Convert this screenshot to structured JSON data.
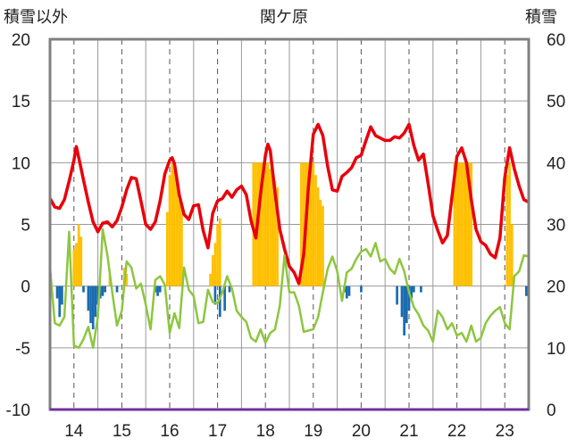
{
  "chart_data": {
    "type": "bar",
    "title": "関ケ原",
    "ylabel_left": "積雪以外",
    "ylabel_right": "積雪",
    "left_axis": {
      "min": -10,
      "max": 20,
      "ticks": [
        "20",
        "15",
        "10",
        "5",
        "0",
        "-5",
        "-10"
      ],
      "tick_values": [
        20,
        15,
        10,
        5,
        0,
        -5,
        -10
      ]
    },
    "right_axis": {
      "min": 0,
      "max": 60,
      "ticks": [
        "60",
        "50",
        "40",
        "30",
        "20",
        "10",
        "0"
      ],
      "tick_values": [
        60,
        50,
        40,
        30,
        20,
        10,
        0
      ]
    },
    "x_axis": {
      "min": 13.5,
      "max": 23.5,
      "categories": [
        "14",
        "15",
        "16",
        "17",
        "18",
        "19",
        "20",
        "21",
        "22",
        "23"
      ],
      "category_values": [
        14,
        15,
        16,
        17,
        18,
        19,
        20,
        21,
        22,
        23
      ]
    },
    "grid": true,
    "series": [
      {
        "type": "line",
        "color": "#e8000b",
        "axis": "left",
        "x": [
          13.5,
          13.6,
          13.7,
          13.8,
          13.9,
          14.0,
          14.05,
          14.1,
          14.2,
          14.3,
          14.4,
          14.5,
          14.6,
          14.7,
          14.8,
          14.9,
          15.0,
          15.1,
          15.2,
          15.3,
          15.4,
          15.5,
          15.6,
          15.7,
          15.8,
          15.9,
          16.0,
          16.05,
          16.1,
          16.2,
          16.3,
          16.4,
          16.5,
          16.6,
          16.7,
          16.8,
          16.9,
          17.0,
          17.1,
          17.2,
          17.3,
          17.4,
          17.5,
          17.6,
          17.7,
          17.8,
          17.9,
          18.0,
          18.05,
          18.1,
          18.2,
          18.3,
          18.4,
          18.5,
          18.6,
          18.7,
          18.8,
          18.9,
          19.0,
          19.1,
          19.2,
          19.3,
          19.4,
          19.5,
          19.6,
          19.7,
          19.8,
          19.9,
          20.0,
          20.1,
          20.2,
          20.3,
          20.4,
          20.5,
          20.6,
          20.7,
          20.8,
          20.9,
          21.0,
          21.1,
          21.2,
          21.3,
          21.4,
          21.5,
          21.6,
          21.7,
          21.8,
          21.9,
          22.0,
          22.1,
          22.2,
          22.3,
          22.4,
          22.5,
          22.6,
          22.7,
          22.8,
          22.9,
          23.0,
          23.1,
          23.2,
          23.3,
          23.4,
          23.5
        ],
        "values": [
          7.1,
          6.4,
          6.3,
          7.0,
          8.5,
          10.2,
          11.3,
          10.4,
          8.6,
          6.8,
          5.2,
          4.4,
          5.1,
          5.2,
          4.8,
          5.3,
          6.4,
          7.8,
          8.8,
          8.7,
          6.9,
          5.0,
          4.6,
          5.2,
          6.9,
          9.1,
          10.2,
          10.4,
          9.9,
          7.4,
          5.8,
          5.4,
          6.5,
          6.6,
          4.5,
          3.1,
          5.9,
          6.9,
          7.1,
          7.7,
          7.2,
          7.8,
          8.1,
          7.4,
          5.3,
          3.9,
          7.5,
          10.6,
          11.5,
          11.0,
          7.6,
          4.6,
          3.0,
          1.6,
          1.1,
          0.2,
          2.6,
          8.1,
          12.3,
          13.1,
          12.2,
          9.7,
          7.8,
          7.7,
          8.9,
          9.2,
          9.6,
          10.4,
          10.6,
          11.8,
          12.9,
          12.2,
          12.0,
          11.8,
          11.8,
          12.1,
          12.0,
          12.4,
          13.1,
          11.4,
          10.2,
          10.7,
          8.3,
          5.7,
          4.5,
          3.5,
          4.1,
          7.3,
          10.5,
          11.2,
          10.0,
          7.0,
          4.6,
          3.6,
          3.3,
          2.6,
          2.3,
          3.9,
          8.8,
          11.2,
          9.5,
          8.1,
          7.0,
          6.8
        ]
      },
      {
        "type": "line",
        "color": "#8dc63f",
        "axis": "left",
        "x": [
          13.5,
          13.6,
          13.7,
          13.8,
          13.9,
          14.0,
          14.1,
          14.2,
          14.3,
          14.4,
          14.5,
          14.6,
          14.7,
          14.8,
          14.9,
          15.0,
          15.1,
          15.2,
          15.3,
          15.4,
          15.5,
          15.6,
          15.7,
          15.8,
          15.9,
          16.0,
          16.1,
          16.2,
          16.3,
          16.4,
          16.5,
          16.6,
          16.7,
          16.8,
          16.9,
          17.0,
          17.1,
          17.2,
          17.3,
          17.4,
          17.5,
          17.6,
          17.7,
          17.8,
          17.9,
          18.0,
          18.1,
          18.2,
          18.3,
          18.4,
          18.5,
          18.6,
          18.7,
          18.8,
          18.9,
          19.0,
          19.1,
          19.2,
          19.3,
          19.4,
          19.5,
          19.6,
          19.7,
          19.8,
          19.9,
          20.0,
          20.1,
          20.2,
          20.3,
          20.4,
          20.5,
          20.6,
          20.7,
          20.8,
          20.9,
          21.0,
          21.1,
          21.2,
          21.3,
          21.4,
          21.5,
          21.6,
          21.7,
          21.8,
          21.9,
          22.0,
          22.1,
          22.2,
          22.3,
          22.4,
          22.5,
          22.6,
          22.7,
          22.8,
          22.9,
          23.0,
          23.1,
          23.2,
          23.3,
          23.4,
          23.5
        ],
        "values": [
          1.5,
          -3.0,
          -3.2,
          -2.5,
          4.4,
          -4.8,
          -5.0,
          -4.3,
          -3.3,
          -5.0,
          -2.5,
          4.6,
          2.5,
          -0.5,
          -3.2,
          -2.0,
          2.0,
          1.5,
          -0.2,
          0.2,
          -1.5,
          -3.5,
          0.5,
          0.8,
          0.1,
          -3.8,
          -2.2,
          -3.4,
          1.5,
          -0.3,
          -0.8,
          -3.0,
          -2.9,
          -0.3,
          -1.3,
          -1.4,
          -0.5,
          0.8,
          -0.2,
          -2.0,
          -2.5,
          -2.9,
          -4.2,
          -4.5,
          -3.5,
          -4.6,
          -3.8,
          -3.5,
          -1.6,
          2.5,
          -0.5,
          -0.5,
          -1.6,
          -3.7,
          -3.6,
          -3.5,
          -2.5,
          -0.5,
          1.4,
          2.4,
          1.2,
          -1.2,
          1.1,
          1.4,
          2.2,
          2.8,
          3.0,
          2.4,
          3.5,
          2.0,
          2.2,
          1.4,
          1.0,
          2.2,
          1.2,
          -0.5,
          -1.7,
          -2.3,
          -3.2,
          -3.6,
          -4.5,
          -2.0,
          -2.5,
          -3.5,
          -3.0,
          -4.0,
          -3.8,
          -4.5,
          -3.2,
          -4.5,
          -4.2,
          -3.0,
          -2.4,
          -2.0,
          -1.7,
          -3.0,
          -3.5,
          0.8,
          1.2,
          2.5,
          2.4
        ]
      },
      {
        "type": "bar",
        "color": "#ffc000",
        "axis": "right",
        "x": [
          14.0,
          14.05,
          14.1,
          14.15,
          14.75,
          15.05,
          15.1,
          15.95,
          16.0,
          16.05,
          16.1,
          16.15,
          16.2,
          16.25,
          16.85,
          16.9,
          16.95,
          17.0,
          17.05,
          17.75,
          17.8,
          17.85,
          17.9,
          17.95,
          18.0,
          18.05,
          18.1,
          18.15,
          18.2,
          18.25,
          18.75,
          18.8,
          18.85,
          18.9,
          18.95,
          19.0,
          19.05,
          19.1,
          19.15,
          19.2,
          21.95,
          22.0,
          22.05,
          22.1,
          22.15,
          22.2,
          22.25,
          22.3,
          23.05,
          23.1,
          23.15
        ],
        "values": [
          26,
          27,
          30,
          28,
          22,
          23,
          22,
          32,
          38,
          40,
          40,
          38,
          34,
          33,
          22,
          25,
          27,
          30,
          31,
          40,
          40,
          40,
          40,
          40,
          40,
          40,
          39,
          38,
          37,
          36,
          40,
          40,
          40,
          40,
          40,
          40,
          38,
          36,
          34,
          33,
          40,
          40,
          40,
          40,
          40,
          40,
          40,
          40,
          38,
          40,
          30
        ]
      },
      {
        "type": "bar",
        "color": "#1a6bb0",
        "axis": "left",
        "x": [
          13.65,
          13.7,
          13.75,
          14.2,
          14.3,
          14.35,
          14.4,
          14.45,
          14.5,
          14.55,
          14.6,
          14.65,
          14.9,
          15.7,
          15.75,
          15.8,
          16.95,
          17.05,
          17.15,
          17.25,
          19.65,
          19.7,
          19.75,
          20.0,
          20.75,
          20.85,
          20.9,
          20.95,
          21.0,
          21.05,
          21.1,
          21.25,
          23.45,
          23.5
        ],
        "values": [
          -1.0,
          -2.5,
          -1.5,
          -0.5,
          -2.0,
          -3.0,
          -3.5,
          -2.5,
          -1.5,
          -1.0,
          -0.8,
          -0.5,
          -0.5,
          -0.5,
          -0.8,
          -0.5,
          -1.5,
          -2.5,
          -2.0,
          -0.5,
          -0.5,
          -1.0,
          -0.8,
          -0.5,
          -1.5,
          -2.5,
          -4.0,
          -3.0,
          -2.0,
          -1.0,
          -0.5,
          -0.5,
          -0.8,
          -1.0
        ]
      }
    ]
  }
}
